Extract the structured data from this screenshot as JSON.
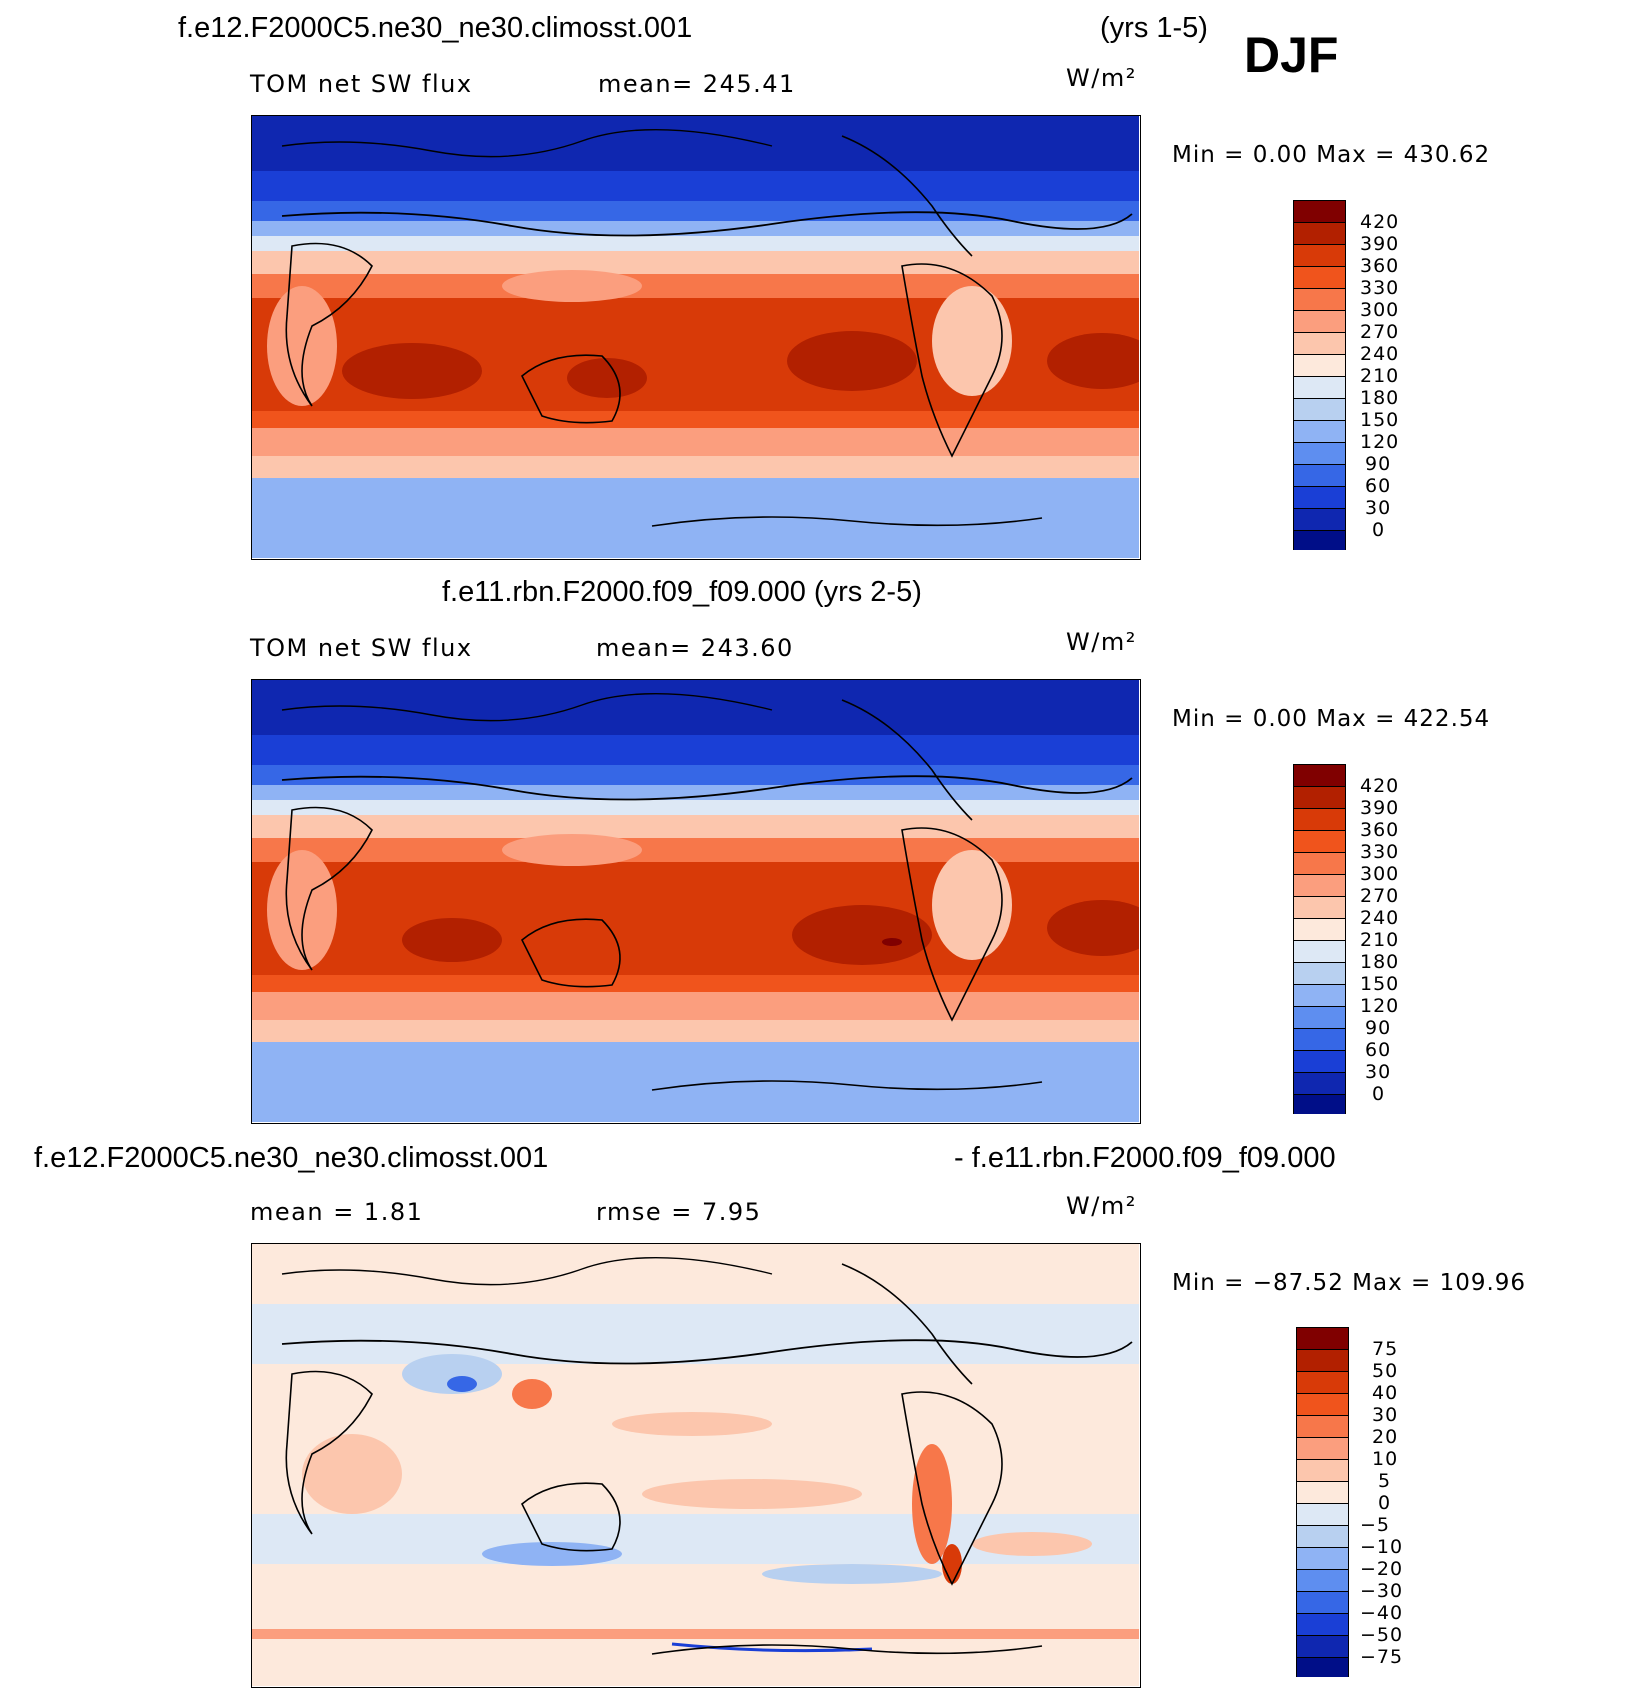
{
  "season": "DJF",
  "panels": [
    {
      "title": "f.e12.F2000C5.ne30_ne30.climosst.001",
      "title_right": "(yrs 1-5)",
      "variable": "TOM net SW flux",
      "stat_text": "mean=  245.41",
      "units": "W/m²",
      "minmax_text": "Min  =     0.00  Max  =  430.62",
      "legend_labels": [
        "420",
        "390",
        "360",
        "330",
        "300",
        "270",
        "240",
        "210",
        "180",
        "150",
        "120",
        "90",
        "60",
        "30",
        "0"
      ],
      "legend_colors": [
        "#800000",
        "#b22000",
        "#d83a08",
        "#f0541c",
        "#f7774a",
        "#fb9e7e",
        "#fcc6ad",
        "#fde9dc",
        "#dde8f5",
        "#b8d0f0",
        "#8fb3f4",
        "#5e8ef0",
        "#3667e6",
        "#1a3fd6",
        "#0f27b0",
        "#000e88"
      ]
    },
    {
      "title": "f.e11.rbn.F2000.f09_f09.000 (yrs 2-5)",
      "title_right": "",
      "variable": "TOM net SW flux",
      "stat_text": "mean=  243.60",
      "units": "W/m²",
      "minmax_text": "Min  =     0.00  Max  =  422.54",
      "legend_labels": [
        "420",
        "390",
        "360",
        "330",
        "300",
        "270",
        "240",
        "210",
        "180",
        "150",
        "120",
        "90",
        "60",
        "30",
        "0"
      ],
      "legend_colors": [
        "#800000",
        "#b22000",
        "#d83a08",
        "#f0541c",
        "#f7774a",
        "#fb9e7e",
        "#fcc6ad",
        "#fde9dc",
        "#dde8f5",
        "#b8d0f0",
        "#8fb3f4",
        "#5e8ef0",
        "#3667e6",
        "#1a3fd6",
        "#0f27b0",
        "#000e88"
      ]
    },
    {
      "title": "f.e12.F2000C5.ne30_ne30.climosst.001",
      "title_right": "- f.e11.rbn.F2000.f09_f09.000",
      "variable": "mean  =     1.81",
      "stat_text": "rmse  =     7.95",
      "units": "W/m²",
      "minmax_text": "Min  = −87.52  Max  =  109.96",
      "legend_labels": [
        "75",
        "50",
        "40",
        "30",
        "20",
        "10",
        "5",
        "0",
        "−5",
        "−10",
        "−20",
        "−30",
        "−40",
        "−50",
        "−75"
      ],
      "legend_colors": [
        "#800000",
        "#b22000",
        "#d83a08",
        "#f0541c",
        "#f7774a",
        "#fb9e7e",
        "#fcc6ad",
        "#fde9dc",
        "#dde8f5",
        "#b8d0f0",
        "#8fb3f4",
        "#5e8ef0",
        "#3667e6",
        "#1a3fd6",
        "#0f27b0",
        "#000e88"
      ]
    }
  ]
}
